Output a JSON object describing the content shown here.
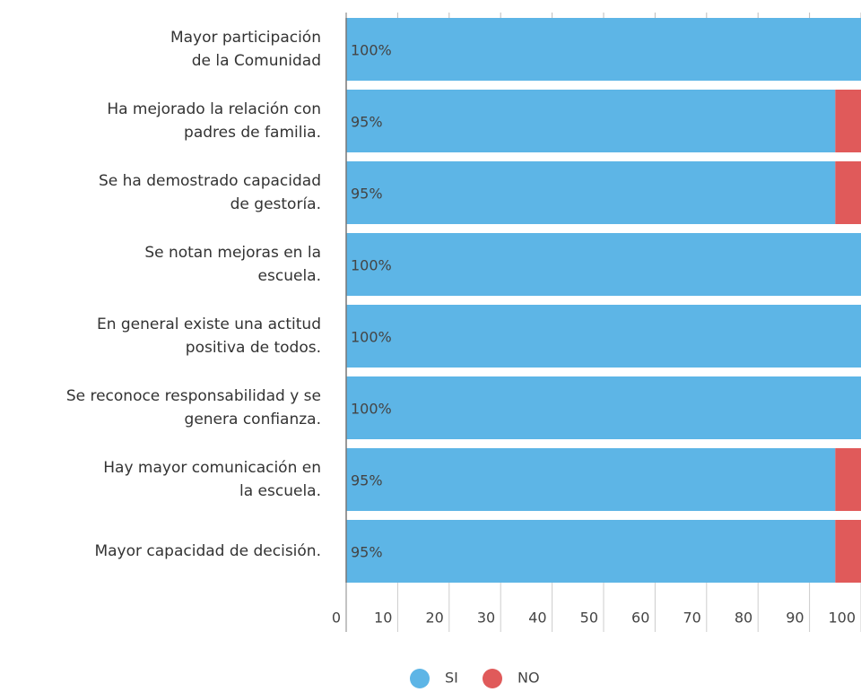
{
  "chart_data": {
    "type": "stacked-barh",
    "categories": [
      "Mayor participación\nde la Comunidad",
      "Ha mejorado la relación con\npadres de familia.",
      "Se ha demostrado capacidad\nde gestoría.",
      "Se notan mejoras en la\nescuela.",
      "En general existe una actitud\npositiva de todos.",
      "Se reconoce responsabilidad y se\ngenera confianza.",
      "Hay mayor comunicación en\nla escuela.",
      "Mayor capacidad de decisión."
    ],
    "series": [
      {
        "name": "SI",
        "color": "#5db5e6",
        "values": [
          100,
          95,
          95,
          100,
          100,
          100,
          95,
          95
        ],
        "value_labels": [
          "100%",
          "95%",
          "95%",
          "100%",
          "100%",
          "100%",
          "95%",
          "95%"
        ]
      },
      {
        "name": "NO",
        "color": "#e05a5a",
        "values": [
          0,
          5,
          5,
          0,
          0,
          0,
          5,
          5
        ]
      }
    ],
    "xlim": [
      0,
      100
    ],
    "xticks": [
      0,
      10,
      20,
      30,
      40,
      50,
      60,
      70,
      80,
      90,
      100
    ]
  }
}
